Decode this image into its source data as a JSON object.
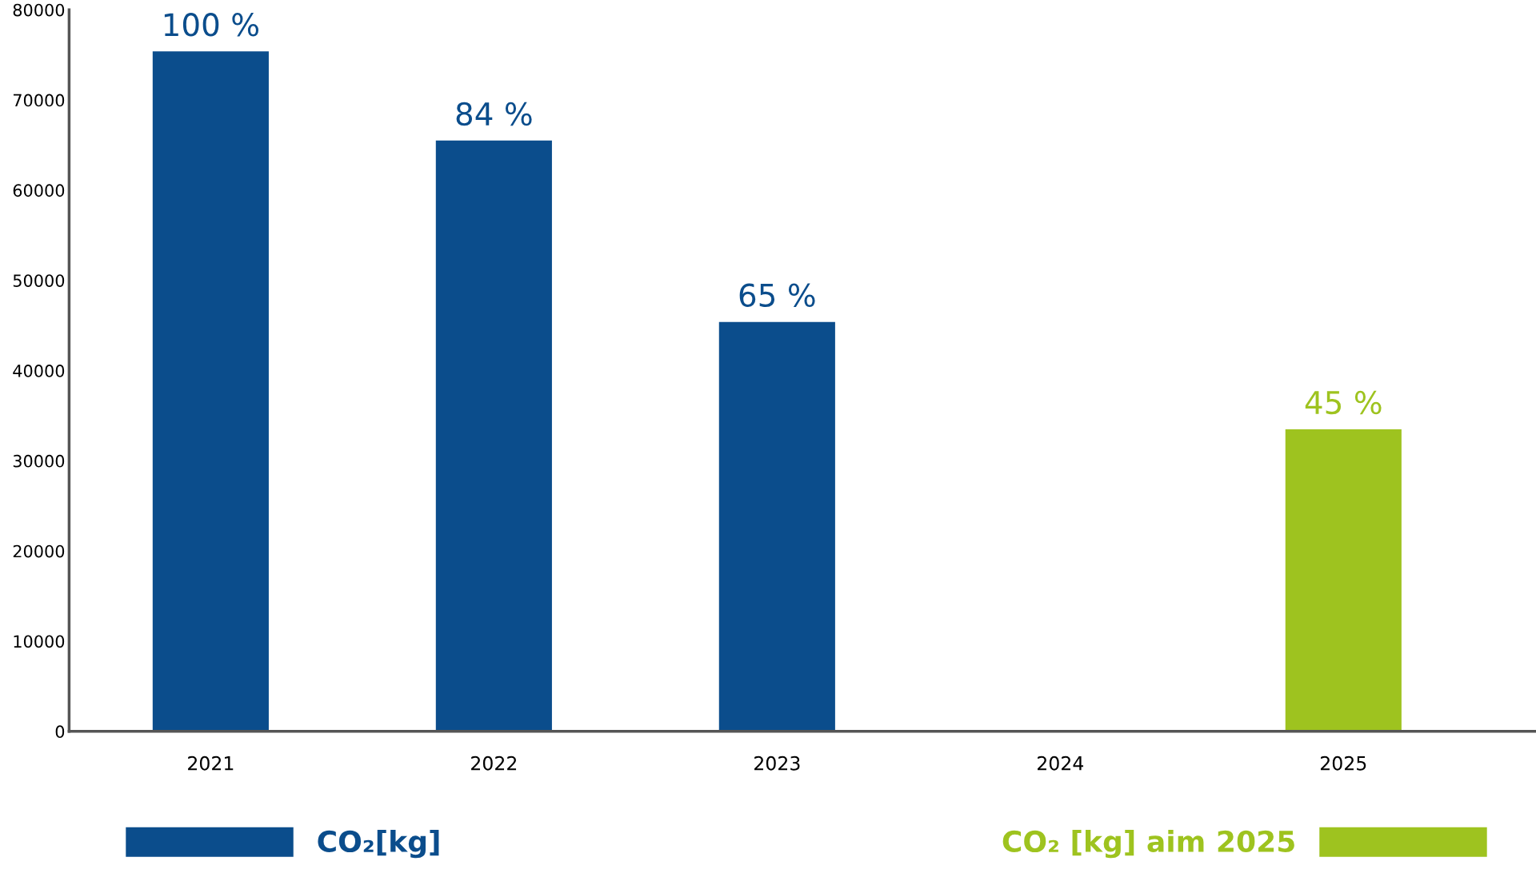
{
  "chart_data": {
    "type": "bar",
    "categories": [
      "2021",
      "2022",
      "2023",
      "2024",
      "2025"
    ],
    "series": [
      {
        "name": "CO₂[kg]",
        "color": "#0b4d8c",
        "values": [
          75400,
          65500,
          45400,
          null,
          null
        ]
      },
      {
        "name": "CO₂ [kg] aim 2025",
        "color": "#9ec31f",
        "values": [
          null,
          null,
          null,
          null,
          33500
        ]
      }
    ],
    "annotations": [
      {
        "text": "100 %",
        "x": "2021",
        "y": 75400
      },
      {
        "text": "84 %",
        "x": "2022",
        "y": 65500
      },
      {
        "text": "65 %",
        "x": "2023",
        "y": 45400
      },
      {
        "text": "45 %",
        "x": "2025",
        "y": 33500
      }
    ],
    "ylim": [
      0,
      80000
    ],
    "yticks": [
      0,
      10000,
      20000,
      30000,
      40000,
      50000,
      60000,
      70000,
      80000
    ],
    "grid": false,
    "legend": "bottom"
  }
}
